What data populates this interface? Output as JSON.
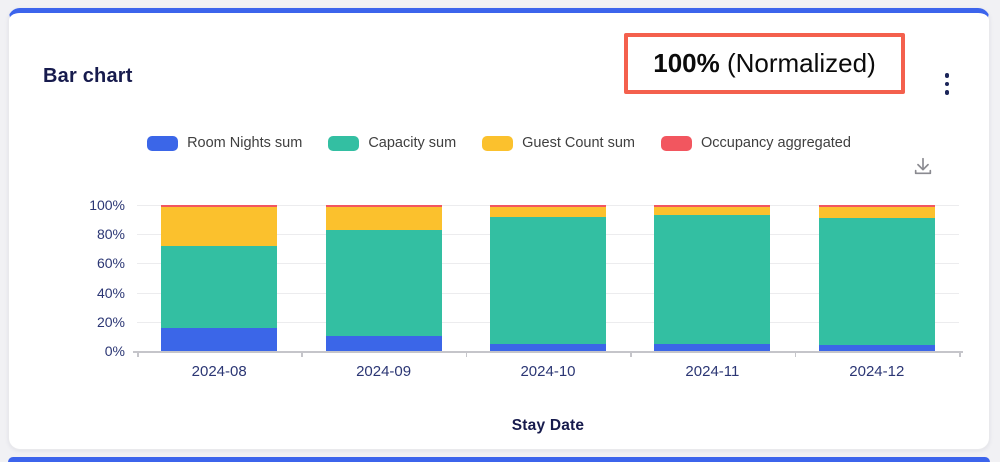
{
  "page": {
    "background": "#F1F1F4",
    "accent_color": "#3C64EC"
  },
  "card": {
    "title": "Bar chart"
  },
  "annotation": {
    "text_bold": "100%",
    "text_regular": " (Normalized)",
    "border_color": "#F4604D"
  },
  "icons": {
    "kebab_menu": "three vertical dots",
    "download": "down arrow into tray"
  },
  "chart_data": {
    "type": "bar",
    "stacked": true,
    "normalized": true,
    "title": "Bar chart",
    "categories": [
      "2024-08",
      "2024-09",
      "2024-10",
      "2024-11",
      "2024-12"
    ],
    "series": [
      {
        "name": "Room Nights sum",
        "color": "#3B66E8",
        "values": [
          16,
          10,
          5,
          5,
          4
        ]
      },
      {
        "name": "Capacity sum",
        "color": "#33BFA2",
        "values": [
          56,
          73,
          87,
          88,
          87
        ]
      },
      {
        "name": "Guest Count sum",
        "color": "#FBC12D",
        "values": [
          27,
          16,
          7,
          6,
          8
        ]
      },
      {
        "name": "Occupancy aggregated",
        "color": "#F2565F",
        "values": [
          1,
          1,
          1,
          1,
          1
        ]
      }
    ],
    "xlabel": "Stay Date",
    "ylabel": "",
    "ylim": [
      0,
      100
    ],
    "y_tick_percents": [
      0,
      20,
      40,
      60,
      80,
      100
    ],
    "y_tick_labels": [
      "0%",
      "20%",
      "40%",
      "60%",
      "80%",
      "100%"
    ],
    "grid": true,
    "legend_position": "top"
  }
}
